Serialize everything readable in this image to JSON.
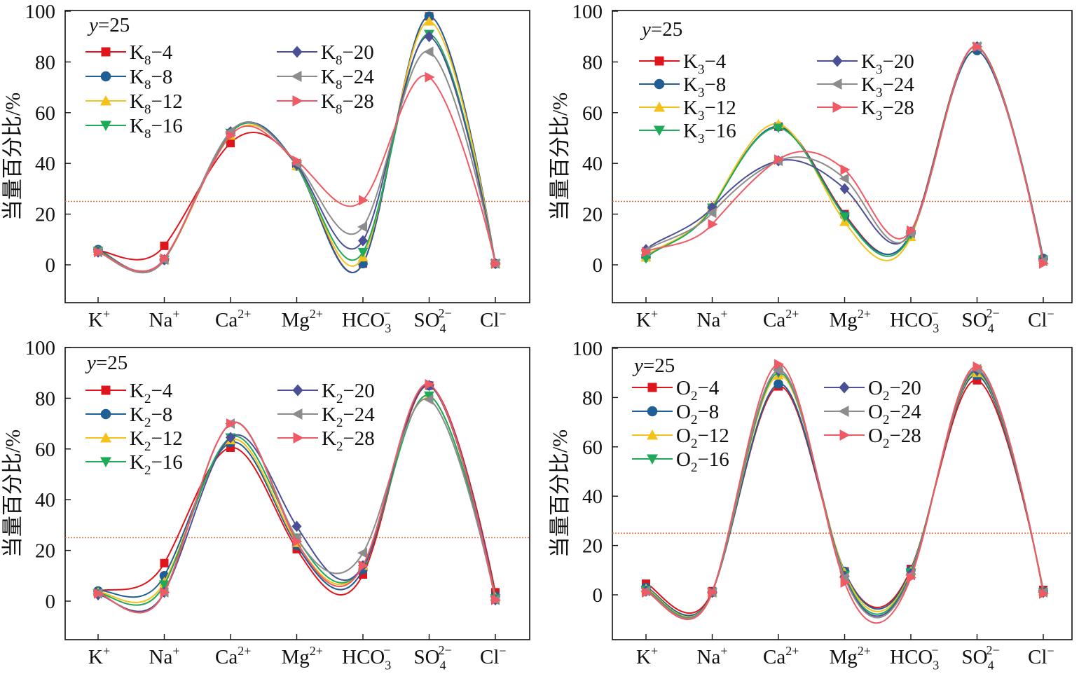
{
  "figure": {
    "categories": [
      {
        "base": "K",
        "sup": "+",
        "sub": ""
      },
      {
        "base": "Na",
        "sup": "+",
        "sub": ""
      },
      {
        "base": "Ca",
        "sup": "2+",
        "sub": ""
      },
      {
        "base": "Mg",
        "sup": "2+",
        "sub": ""
      },
      {
        "base": "HCO",
        "sup": "−",
        "sub": "3"
      },
      {
        "base": "SO",
        "sup": "2−",
        "sub": "4"
      },
      {
        "base": "Cl",
        "sup": "−",
        "sub": ""
      }
    ],
    "ylabel": "当量百分比/%",
    "yticks": [
      0,
      20,
      40,
      60,
      80,
      100
    ],
    "ylim": [
      -15,
      100
    ],
    "reference_line": 25,
    "colors": {
      "s4": "#e0141b",
      "s8": "#1f5f96",
      "s12": "#f4c21b",
      "s16": "#1faa5a",
      "s20": "#4a4f96",
      "s24": "#8c8c8c",
      "s28": "#ef5a64",
      "refline": "#e06b3a",
      "axis": "#111111"
    },
    "markers": [
      "square",
      "circle",
      "triangle-up",
      "triangle-down",
      "diamond",
      "triangle-left",
      "triangle-right"
    ]
  },
  "chart_data": [
    {
      "type": "line",
      "annotation": "y=25",
      "categories": [
        "K+",
        "Na+",
        "Ca2+",
        "Mg2+",
        "HCO3-",
        "SO42-",
        "Cl-"
      ],
      "series": [
        {
          "name": "K8−4",
          "values": [
            5.5,
            7.5,
            48,
            39,
            0.5,
            98,
            0.5
          ]
        },
        {
          "name": "K8−8",
          "values": [
            6,
            2,
            52,
            39,
            0.5,
            98,
            0.5
          ]
        },
        {
          "name": "K8−12",
          "values": [
            5.5,
            2,
            51,
            39,
            3,
            96,
            0.5
          ]
        },
        {
          "name": "K8−16",
          "values": [
            5.5,
            2,
            52,
            39,
            5,
            91,
            0.5
          ]
        },
        {
          "name": "K8−20",
          "values": [
            5,
            2,
            52.5,
            39.5,
            9.5,
            90,
            0.5
          ]
        },
        {
          "name": "K8−24",
          "values": [
            5,
            2,
            52.5,
            40,
            15,
            84,
            0.5
          ]
        },
        {
          "name": "K8−28",
          "values": [
            5,
            2.5,
            51,
            41,
            25.5,
            74,
            0.5
          ]
        }
      ],
      "ylabel": "当量百分比/%",
      "ylim": [
        -15,
        100
      ]
    },
    {
      "type": "line",
      "annotation": "y=25",
      "categories": [
        "K+",
        "Na+",
        "Ca2+",
        "Mg2+",
        "HCO3-",
        "SO42-",
        "Cl-"
      ],
      "series": [
        {
          "name": "K3−4",
          "values": [
            3,
            22.5,
            54.5,
            20,
            12.5,
            86,
            2
          ]
        },
        {
          "name": "K3−8",
          "values": [
            3,
            22.5,
            54.5,
            19.5,
            12.5,
            84.5,
            2.5
          ]
        },
        {
          "name": "K3−12",
          "values": [
            3,
            23,
            55.5,
            17,
            11,
            86,
            2
          ]
        },
        {
          "name": "K3−16",
          "values": [
            2.5,
            22.5,
            54,
            19,
            12,
            86,
            2
          ]
        },
        {
          "name": "K3−20",
          "values": [
            6,
            22.5,
            41,
            30,
            13,
            86,
            2
          ]
        },
        {
          "name": "K3−24",
          "values": [
            5.5,
            20.5,
            41,
            34,
            12.5,
            86,
            1.5
          ]
        },
        {
          "name": "K3−28",
          "values": [
            5,
            16,
            41.5,
            37.5,
            13.5,
            86,
            0.5
          ]
        }
      ],
      "ylabel": "当量百分比/%",
      "ylim": [
        -15,
        100
      ]
    },
    {
      "type": "line",
      "annotation": "y=25",
      "categories": [
        "K+",
        "Na+",
        "Ca2+",
        "Mg2+",
        "HCO3-",
        "SO42-",
        "Cl-"
      ],
      "series": [
        {
          "name": "K2−4",
          "values": [
            3.5,
            15,
            60.5,
            20.5,
            10.5,
            85,
            3.5
          ]
        },
        {
          "name": "K2−8",
          "values": [
            4,
            10,
            62.5,
            22,
            12.5,
            85,
            2
          ]
        },
        {
          "name": "K2−12",
          "values": [
            3.5,
            7.5,
            63.5,
            23,
            14,
            81,
            1.5
          ]
        },
        {
          "name": "K2−16",
          "values": [
            3,
            6.5,
            64.5,
            25,
            14,
            81,
            1
          ]
        },
        {
          "name": "K2−20",
          "values": [
            2.5,
            3.5,
            64.5,
            29.5,
            14,
            85,
            0.5
          ]
        },
        {
          "name": "K2−24",
          "values": [
            3,
            3.5,
            70,
            25,
            19,
            79.5,
            0.5
          ]
        },
        {
          "name": "K2−28",
          "values": [
            3,
            3.5,
            70,
            23.5,
            14,
            85.5,
            0.5
          ]
        }
      ],
      "ylabel": "当量百分比/%",
      "ylim": [
        -15,
        100
      ]
    },
    {
      "type": "line",
      "annotation": "y=25",
      "categories": [
        "K+",
        "Na+",
        "Ca2+",
        "Mg2+",
        "HCO3-",
        "SO42-",
        "Cl-"
      ],
      "series": [
        {
          "name": "O2−4",
          "values": [
            4.5,
            1.5,
            84.5,
            9.5,
            10.5,
            87,
            2
          ]
        },
        {
          "name": "O2−8",
          "values": [
            3,
            1,
            85.5,
            9.5,
            10,
            89,
            1.5
          ]
        },
        {
          "name": "O2−12",
          "values": [
            2.5,
            1,
            89,
            9,
            9.5,
            90,
            1.5
          ]
        },
        {
          "name": "O2−16",
          "values": [
            2,
            1,
            90,
            8,
            9,
            90.5,
            1
          ]
        },
        {
          "name": "O2−20",
          "values": [
            1.5,
            1,
            91,
            7.5,
            8.5,
            91,
            1
          ]
        },
        {
          "name": "O2−24",
          "values": [
            1.5,
            1,
            91,
            7,
            8,
            91.5,
            1
          ]
        },
        {
          "name": "O2−28",
          "values": [
            1,
            1,
            93.5,
            5,
            7,
            92.5,
            0.5
          ]
        }
      ],
      "ylabel": "当量百分比/%",
      "ylim": [
        -15,
        100
      ]
    }
  ],
  "panels": [
    {
      "legend": [
        {
          "base": "K",
          "sub": "8",
          "suffix": "−4"
        },
        {
          "base": "K",
          "sub": "8",
          "suffix": "−8"
        },
        {
          "base": "K",
          "sub": "8",
          "suffix": "−12"
        },
        {
          "base": "K",
          "sub": "8",
          "suffix": "−16"
        },
        {
          "base": "K",
          "sub": "8",
          "suffix": "−20"
        },
        {
          "base": "K",
          "sub": "8",
          "suffix": "−24"
        },
        {
          "base": "K",
          "sub": "8",
          "suffix": "−28"
        }
      ]
    },
    {
      "legend": [
        {
          "base": "K",
          "sub": "3",
          "suffix": "−4"
        },
        {
          "base": "K",
          "sub": "3",
          "suffix": "−8"
        },
        {
          "base": "K",
          "sub": "3",
          "suffix": "−12"
        },
        {
          "base": "K",
          "sub": "3",
          "suffix": "−16"
        },
        {
          "base": "K",
          "sub": "3",
          "suffix": "−20"
        },
        {
          "base": "K",
          "sub": "3",
          "suffix": "−24"
        },
        {
          "base": "K",
          "sub": "3",
          "suffix": "−28"
        }
      ]
    },
    {
      "legend": [
        {
          "base": "K",
          "sub": "2",
          "suffix": "−4"
        },
        {
          "base": "K",
          "sub": "2",
          "suffix": "−8"
        },
        {
          "base": "K",
          "sub": "2",
          "suffix": "−12"
        },
        {
          "base": "K",
          "sub": "2",
          "suffix": "−16"
        },
        {
          "base": "K",
          "sub": "2",
          "suffix": "−20"
        },
        {
          "base": "K",
          "sub": "2",
          "suffix": "−24"
        },
        {
          "base": "K",
          "sub": "2",
          "suffix": "−28"
        }
      ]
    },
    {
      "legend": [
        {
          "base": "O",
          "sub": "2",
          "suffix": "−4"
        },
        {
          "base": "O",
          "sub": "2",
          "suffix": "−8"
        },
        {
          "base": "O",
          "sub": "2",
          "suffix": "−12"
        },
        {
          "base": "O",
          "sub": "2",
          "suffix": "−16"
        },
        {
          "base": "O",
          "sub": "2",
          "suffix": "−20"
        },
        {
          "base": "O",
          "sub": "2",
          "suffix": "−24"
        },
        {
          "base": "O",
          "sub": "2",
          "suffix": "−28"
        }
      ]
    }
  ]
}
